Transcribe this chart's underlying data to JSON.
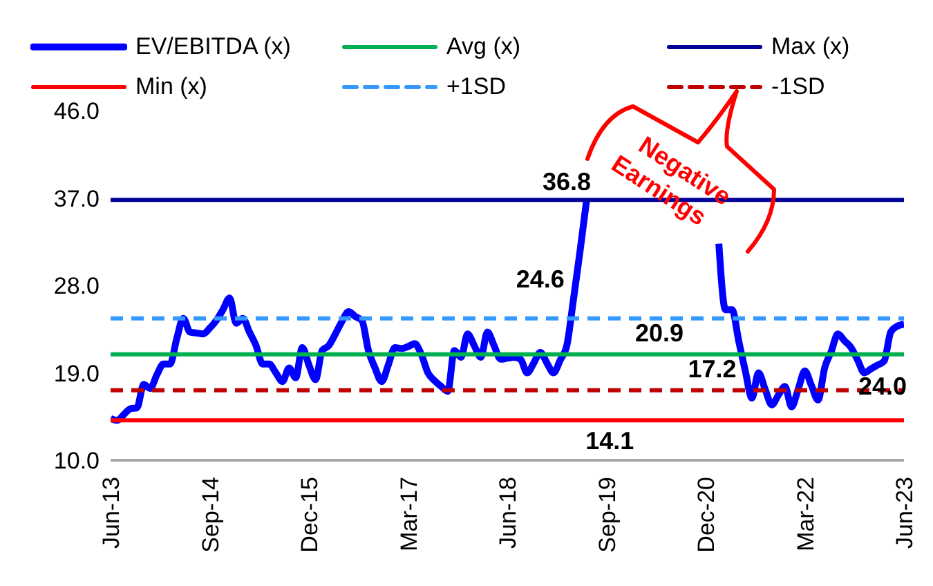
{
  "chart_data": {
    "type": "line",
    "categories": [
      "Jun-13",
      null,
      null,
      null,
      null,
      null,
      null,
      null,
      null,
      null,
      null,
      null,
      null,
      null,
      null,
      "Sep-14",
      null,
      null,
      null,
      null,
      null,
      null,
      null,
      null,
      null,
      null,
      null,
      null,
      null,
      null,
      "Dec-15",
      null,
      null,
      null,
      null,
      null,
      null,
      null,
      null,
      null,
      null,
      null,
      null,
      null,
      null,
      "Mar-17",
      null,
      null,
      null,
      null,
      null,
      null,
      null,
      null,
      null,
      null,
      null,
      null,
      null,
      null,
      "Jun-18",
      null,
      null,
      null,
      null,
      null,
      null,
      null,
      null,
      null,
      null,
      null,
      null,
      null,
      null,
      "Sep-19",
      null,
      null,
      null,
      null,
      null,
      null,
      null,
      null,
      null,
      null,
      null,
      null,
      null,
      null,
      "Dec-20",
      null,
      null,
      null,
      null,
      null,
      null,
      null,
      null,
      null,
      null,
      null,
      null,
      null,
      null,
      "Mar-22",
      null,
      null,
      null,
      null,
      null,
      null,
      null,
      null,
      null,
      null,
      null,
      null,
      null,
      null,
      "Jun-23"
    ],
    "series": [
      {
        "name": "EV/EBITDA (x)",
        "color": "#0000ff",
        "values": [
          14.3,
          14.1,
          14.7,
          15.3,
          15.4,
          17.8,
          17.4,
          18.8,
          19.9,
          19.9,
          22.5,
          24.6,
          23.2,
          23.1,
          23.0,
          23.6,
          24.4,
          25.5,
          26.7,
          24.1,
          24.6,
          23.2,
          21.8,
          19.9,
          19.9,
          19.0,
          18.1,
          19.5,
          18.5,
          21.6,
          19.8,
          18.3,
          21.3,
          21.8,
          23.0,
          24.3,
          25.3,
          24.8,
          24.4,
          21.3,
          19.5,
          18.1,
          19.8,
          21.6,
          21.5,
          21.7,
          22.0,
          20.9,
          19.0,
          18.2,
          17.6,
          17.1,
          21.3,
          20.6,
          23.0,
          21.8,
          20.6,
          23.2,
          21.8,
          20.4,
          20.5,
          20.6,
          20.4,
          19.0,
          20.0,
          21.1,
          20.0,
          19.0,
          20.3,
          21.8,
          26.5,
          31.5,
          36.8,
          null,
          null,
          null,
          null,
          null,
          null,
          null,
          null,
          null,
          null,
          null,
          null,
          null,
          null,
          null,
          null,
          null,
          null,
          null,
          32.3,
          25.5,
          25.5,
          22.3,
          19.2,
          16.4,
          19.0,
          17.3,
          15.7,
          16.7,
          17.6,
          15.5,
          17.3,
          19.2,
          17.7,
          16.2,
          19.5,
          21.2,
          23.0,
          22.3,
          21.6,
          20.3,
          19.0,
          19.4,
          19.8,
          20.2,
          23.2,
          23.8,
          24.0
        ]
      },
      {
        "name": "Avg (x)",
        "color": "#00b050",
        "x": [
          "Jun-13",
          "Jun-23"
        ],
        "values": [
          20.9,
          20.9
        ]
      },
      {
        "name": "Max (x)",
        "color": "#000099",
        "x": [
          "Jun-13",
          "Jun-23"
        ],
        "values": [
          36.8,
          36.8
        ]
      },
      {
        "name": "Min (x)",
        "color": "#ff0000",
        "x": [
          "Jun-13",
          "Jun-23"
        ],
        "values": [
          14.1,
          14.1
        ]
      },
      {
        "name": "+1SD",
        "color": "#3399ff",
        "line_style": "dashed",
        "x": [
          "Jun-13",
          "Jun-23"
        ],
        "values": [
          24.6,
          24.6
        ]
      },
      {
        "name": "-1SD",
        "color": "#c00000",
        "line_style": "dashed",
        "x": [
          "Jun-13",
          "Jun-23"
        ],
        "values": [
          17.2,
          17.2
        ]
      }
    ],
    "ylim": [
      10,
      46
    ],
    "yticks": [
      {
        "value": 10,
        "label": "10.0"
      },
      {
        "value": 19,
        "label": "19.0"
      },
      {
        "value": 28,
        "label": "28.0"
      },
      {
        "value": 37,
        "label": "37.0"
      },
      {
        "value": 46,
        "label": "46.0"
      }
    ],
    "annotations": [
      {
        "text": "36.8",
        "y": 36.8
      },
      {
        "text": "24.6",
        "y": 24.6
      },
      {
        "text": "20.9",
        "y": 20.9
      },
      {
        "text": "17.2",
        "y": 17.2
      },
      {
        "text": "14.1",
        "y": 14.1
      },
      {
        "text": "24.0",
        "x": "Jun-23",
        "y": 24.0
      },
      "Negative Earnings"
    ],
    "legend": "top",
    "marker": "none",
    "line_style": "solid"
  }
}
